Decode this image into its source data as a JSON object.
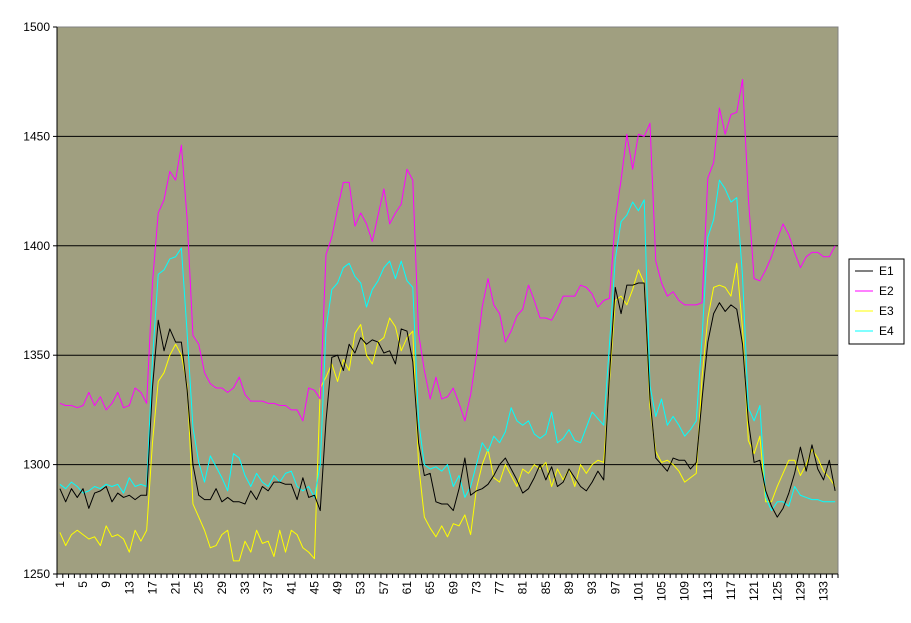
{
  "chart_data": {
    "type": "line",
    "ylim": [
      1250,
      1500
    ],
    "yticks": [
      1250,
      1300,
      1350,
      1400,
      1450,
      1500
    ],
    "xticks": [
      1,
      5,
      9,
      13,
      17,
      21,
      25,
      29,
      33,
      37,
      41,
      45,
      49,
      53,
      57,
      61,
      65,
      69,
      73,
      77,
      81,
      85,
      89,
      93,
      97,
      101,
      105,
      109,
      113,
      117,
      121,
      125,
      129,
      133
    ],
    "grid": "horizontal",
    "legend_position": "right",
    "plot_background": "#a09f80",
    "x": [
      1,
      2,
      3,
      4,
      5,
      6,
      7,
      8,
      9,
      10,
      11,
      12,
      13,
      14,
      15,
      16,
      17,
      18,
      19,
      20,
      21,
      22,
      23,
      24,
      25,
      26,
      27,
      28,
      29,
      30,
      31,
      32,
      33,
      34,
      35,
      36,
      37,
      38,
      39,
      40,
      41,
      42,
      43,
      44,
      45,
      46,
      47,
      48,
      49,
      50,
      51,
      52,
      53,
      54,
      55,
      56,
      57,
      58,
      59,
      60,
      61,
      62,
      63,
      64,
      65,
      66,
      67,
      68,
      69,
      70,
      71,
      72,
      73,
      74,
      75,
      76,
      77,
      78,
      79,
      80,
      81,
      82,
      83,
      84,
      85,
      86,
      87,
      88,
      89,
      90,
      91,
      92,
      93,
      94,
      95,
      96,
      97,
      98,
      99,
      100,
      101,
      102,
      103,
      104,
      105,
      106,
      107,
      108,
      109,
      110,
      111,
      112,
      113,
      114,
      115,
      116,
      117,
      118,
      119,
      120,
      121,
      122,
      123,
      124,
      125,
      126,
      127,
      128,
      129,
      130,
      131,
      132,
      133,
      134,
      135
    ],
    "series": [
      {
        "name": "E1",
        "color": "#000000",
        "values": [
          1289,
          1283,
          1289,
          1285,
          1289,
          1280,
          1287,
          1288,
          1290,
          1283,
          1287,
          1285,
          1286,
          1284,
          1286,
          1286,
          1335,
          1366,
          1352,
          1362,
          1356,
          1356,
          1334,
          1300,
          1286,
          1284,
          1284,
          1289,
          1283,
          1285,
          1283,
          1283,
          1282,
          1288,
          1284,
          1290,
          1288,
          1292,
          1292,
          1291,
          1291,
          1284,
          1294,
          1285,
          1286,
          1279,
          1320,
          1349,
          1350,
          1343,
          1355,
          1351,
          1358,
          1355,
          1357,
          1356,
          1351,
          1352,
          1346,
          1362,
          1361,
          1347,
          1310,
          1295,
          1296,
          1283,
          1282,
          1282,
          1279,
          1289,
          1303,
          1286,
          1288,
          1289,
          1291,
          1295,
          1300,
          1303,
          1298,
          1293,
          1287,
          1289,
          1294,
          1300,
          1293,
          1299,
          1290,
          1292,
          1298,
          1294,
          1290,
          1288,
          1292,
          1297,
          1293,
          1341,
          1381,
          1369,
          1382,
          1382,
          1383,
          1383,
          1330,
          1303,
          1300,
          1297,
          1303,
          1302,
          1302,
          1298,
          1301,
          1330,
          1356,
          1369,
          1374,
          1370,
          1373,
          1371,
          1355,
          1320,
          1301,
          1302,
          1288,
          1281,
          1276,
          1280,
          1287,
          1296,
          1308,
          1297,
          1309,
          1298,
          1293,
          1302,
          1288
        ]
      },
      {
        "name": "E2",
        "color": "#ff00ff",
        "values": [
          1328,
          1327,
          1327,
          1326,
          1327,
          1333,
          1327,
          1331,
          1325,
          1328,
          1333,
          1326,
          1327,
          1335,
          1333,
          1328,
          1383,
          1415,
          1421,
          1434,
          1430,
          1446,
          1412,
          1359,
          1355,
          1342,
          1337,
          1335,
          1335,
          1333,
          1335,
          1340,
          1332,
          1329,
          1329,
          1329,
          1328,
          1328,
          1327,
          1327,
          1325,
          1325,
          1320,
          1335,
          1334,
          1330,
          1396,
          1404,
          1417,
          1429,
          1429,
          1409,
          1415,
          1410,
          1402,
          1414,
          1426,
          1410,
          1415,
          1419,
          1435,
          1430,
          1360,
          1343,
          1330,
          1340,
          1330,
          1331,
          1335,
          1328,
          1320,
          1332,
          1350,
          1372,
          1385,
          1373,
          1369,
          1356,
          1361,
          1368,
          1371,
          1382,
          1375,
          1367,
          1367,
          1366,
          1371,
          1377,
          1377,
          1377,
          1382,
          1381,
          1378,
          1372,
          1375,
          1376,
          1412,
          1430,
          1451,
          1435,
          1451,
          1450,
          1456,
          1393,
          1383,
          1377,
          1379,
          1375,
          1373,
          1373,
          1373,
          1374,
          1431,
          1438,
          1463,
          1451,
          1460,
          1461,
          1476,
          1422,
          1385,
          1384,
          1389,
          1395,
          1403,
          1410,
          1405,
          1397,
          1390,
          1395,
          1397,
          1397,
          1395,
          1395,
          1400
        ]
      },
      {
        "name": "E3",
        "color": "#ffff00",
        "values": [
          1269,
          1263,
          1268,
          1270,
          1268,
          1266,
          1267,
          1263,
          1272,
          1267,
          1268,
          1266,
          1260,
          1270,
          1265,
          1270,
          1310,
          1338,
          1342,
          1350,
          1355,
          1350,
          1336,
          1282,
          1276,
          1270,
          1262,
          1263,
          1268,
          1270,
          1256,
          1256,
          1265,
          1260,
          1270,
          1264,
          1265,
          1258,
          1270,
          1260,
          1270,
          1268,
          1262,
          1260,
          1257,
          1335,
          1340,
          1346,
          1338,
          1348,
          1343,
          1360,
          1364,
          1350,
          1346,
          1356,
          1358,
          1367,
          1363,
          1352,
          1358,
          1361,
          1300,
          1276,
          1271,
          1267,
          1272,
          1267,
          1273,
          1272,
          1277,
          1268,
          1289,
          1300,
          1307,
          1294,
          1292,
          1300,
          1295,
          1290,
          1298,
          1296,
          1300,
          1298,
          1301,
          1290,
          1298,
          1293,
          1298,
          1290,
          1300,
          1296,
          1300,
          1302,
          1301,
          1338,
          1375,
          1377,
          1373,
          1380,
          1389,
          1383,
          1326,
          1306,
          1301,
          1302,
          1300,
          1297,
          1292,
          1294,
          1296,
          1340,
          1367,
          1381,
          1382,
          1381,
          1377,
          1392,
          1362,
          1311,
          1305,
          1313,
          1283,
          1283,
          1290,
          1296,
          1302,
          1302,
          1295,
          1300,
          1307,
          1303,
          1297,
          1294,
          1290
        ]
      },
      {
        "name": "E4",
        "color": "#00ffff",
        "values": [
          1291,
          1289,
          1292,
          1290,
          1287,
          1288,
          1290,
          1289,
          1291,
          1290,
          1291,
          1287,
          1294,
          1290,
          1291,
          1290,
          1348,
          1387,
          1389,
          1394,
          1395,
          1399,
          1360,
          1317,
          1301,
          1292,
          1304,
          1299,
          1294,
          1288,
          1305,
          1303,
          1295,
          1290,
          1296,
          1292,
          1290,
          1295,
          1292,
          1296,
          1297,
          1290,
          1288,
          1290,
          1285,
          1300,
          1362,
          1380,
          1383,
          1390,
          1392,
          1386,
          1383,
          1372,
          1380,
          1384,
          1390,
          1393,
          1385,
          1393,
          1384,
          1381,
          1320,
          1300,
          1298,
          1299,
          1297,
          1300,
          1290,
          1295,
          1285,
          1290,
          1300,
          1310,
          1306,
          1313,
          1310,
          1315,
          1326,
          1320,
          1318,
          1320,
          1314,
          1312,
          1314,
          1324,
          1310,
          1312,
          1316,
          1311,
          1310,
          1317,
          1324,
          1321,
          1318,
          1355,
          1394,
          1411,
          1414,
          1420,
          1416,
          1421,
          1336,
          1322,
          1330,
          1318,
          1322,
          1318,
          1313,
          1316,
          1320,
          1358,
          1404,
          1412,
          1430,
          1426,
          1420,
          1422,
          1386,
          1326,
          1320,
          1327,
          1285,
          1279,
          1283,
          1283,
          1281,
          1290,
          1286,
          1285,
          1284,
          1284,
          1283,
          1283,
          1283
        ]
      }
    ]
  }
}
